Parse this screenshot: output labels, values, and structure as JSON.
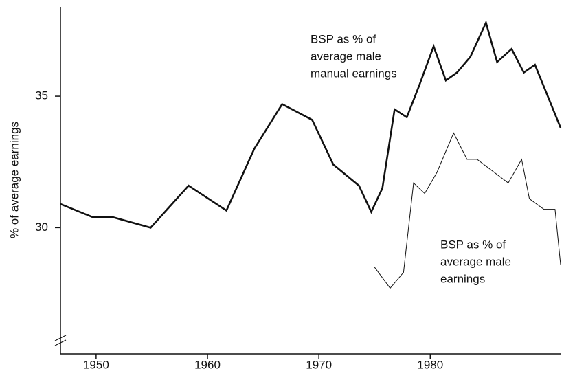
{
  "chart_data": {
    "type": "line",
    "y_label": "% of average earnings",
    "xlim": [
      1946.8,
      1991.7
    ],
    "ylim": [
      25.2,
      38.4
    ],
    "xticks": [
      1950,
      1960,
      1970,
      1980
    ],
    "yticks": [
      30,
      35
    ],
    "grid": false,
    "series": [
      {
        "label": [
          "BSP as % of",
          "average male",
          "manual earnings"
        ],
        "color": "#111111",
        "width": 2.6,
        "x": [
          1946.8,
          1949.7,
          1951.5,
          1954.9,
          1958.3,
          1961.7,
          1964.2,
          1966.7,
          1969.4,
          1971.3,
          1973.6,
          1974.7,
          1975.7,
          1976.8,
          1977.9,
          1979.0,
          1980.3,
          1981.4,
          1982.4,
          1983.6,
          1985.0,
          1986.0,
          1987.3,
          1988.4,
          1989.4,
          1991.7
        ],
        "values": [
          30.9,
          30.4,
          30.4,
          30.0,
          31.6,
          30.65,
          33.0,
          34.7,
          34.1,
          32.4,
          31.6,
          30.6,
          31.5,
          34.5,
          34.2,
          35.4,
          36.9,
          35.6,
          35.9,
          36.5,
          37.8,
          36.3,
          36.8,
          35.9,
          36.2,
          33.8
        ]
      },
      {
        "label": [
          "BSP as % of",
          "average male",
          "earnings"
        ],
        "color": "#111111",
        "width": 1,
        "x": [
          1975.0,
          1976.4,
          1977.6,
          1978.5,
          1979.5,
          1980.6,
          1982.1,
          1983.3,
          1984.2,
          1987.0,
          1988.2,
          1988.9,
          1990.2,
          1991.2,
          1991.7
        ],
        "values": [
          28.5,
          27.7,
          28.3,
          31.7,
          31.3,
          32.1,
          33.6,
          32.6,
          32.6,
          31.7,
          32.6,
          31.1,
          30.7,
          30.7,
          28.6
        ]
      }
    ]
  }
}
